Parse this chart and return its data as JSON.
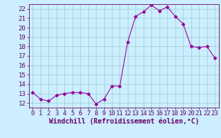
{
  "x": [
    0,
    1,
    2,
    3,
    4,
    5,
    6,
    7,
    8,
    9,
    10,
    11,
    12,
    13,
    14,
    15,
    16,
    17,
    18,
    19,
    20,
    21,
    22,
    23
  ],
  "y": [
    13.1,
    12.4,
    12.2,
    12.8,
    13.0,
    13.1,
    13.1,
    13.0,
    11.9,
    12.4,
    13.8,
    13.8,
    18.5,
    21.2,
    21.7,
    22.4,
    21.8,
    22.2,
    21.2,
    20.4,
    18.0,
    17.9,
    18.0,
    16.8
  ],
  "line_color": "#990099",
  "marker": "D",
  "marker_size": 2.5,
  "bg_color": "#cceeff",
  "grid_color": "#99cccc",
  "xlabel": "Windchill (Refroidissement éolien,°C)",
  "xlabel_color": "#660066",
  "tick_color": "#660066",
  "ylim": [
    11.5,
    22.5
  ],
  "xlim": [
    -0.5,
    23.5
  ],
  "yticks": [
    12,
    13,
    14,
    15,
    16,
    17,
    18,
    19,
    20,
    21,
    22
  ],
  "xticks": [
    0,
    1,
    2,
    3,
    4,
    5,
    6,
    7,
    8,
    9,
    10,
    11,
    12,
    13,
    14,
    15,
    16,
    17,
    18,
    19,
    20,
    21,
    22,
    23
  ],
  "spine_color": "#660066",
  "tick_fontsize": 6.5,
  "xlabel_fontsize": 7.0
}
